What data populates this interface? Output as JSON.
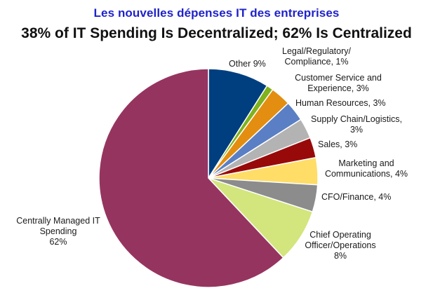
{
  "chart_data": {
    "type": "pie",
    "title": "Les nouvelles dépenses IT des entreprises",
    "subtitle": "38% of IT Spending Is Decentralized; 62% Is Centralized",
    "start_angle_deg": 0,
    "direction": "clockwise",
    "slices": [
      {
        "label_lines": [
          "Other 9%"
        ],
        "value": 9,
        "color": "#003f7f"
      },
      {
        "label_lines": [
          "Legal/Regulatory/",
          "Compliance, 1%"
        ],
        "value": 1,
        "color": "#7fb21c"
      },
      {
        "label_lines": [
          "Customer Service and",
          "Experience, 3%"
        ],
        "value": 3,
        "color": "#e38e10"
      },
      {
        "label_lines": [
          "Human Resources, 3%"
        ],
        "value": 3,
        "color": "#5a7fc4"
      },
      {
        "label_lines": [
          "Supply Chain/Logistics,",
          "3%"
        ],
        "value": 3,
        "color": "#b3b3b3"
      },
      {
        "label_lines": [
          "Sales, 3%"
        ],
        "value": 3,
        "color": "#980a0a"
      },
      {
        "label_lines": [
          "Marketing and",
          "Communications, 4%"
        ],
        "value": 4,
        "color": "#ffdd66"
      },
      {
        "label_lines": [
          "CFO/Finance, 4%"
        ],
        "value": 4,
        "color": "#8c8c8c"
      },
      {
        "label_lines": [
          "Chief Operating",
          "Officer/Operations",
          "8%"
        ],
        "value": 8,
        "color": "#d3e57d"
      },
      {
        "label_lines": [
          "Centrally Managed IT",
          "Spending",
          "62%"
        ],
        "value": 62,
        "color": "#963460"
      }
    ]
  }
}
